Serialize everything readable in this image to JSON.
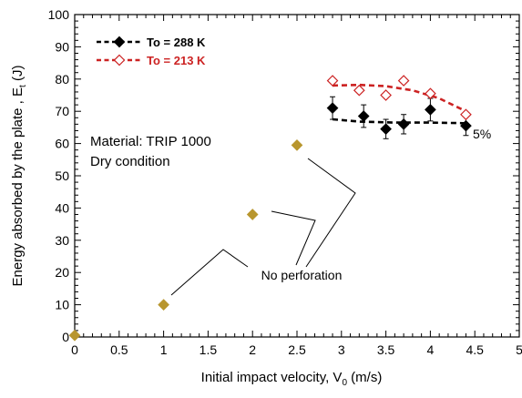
{
  "chart_data": {
    "type": "scatter",
    "xlabel": "Initial impact velocity, V",
    "xlabel_sub": "0",
    "xlabel_unit": " (m/s)",
    "ylabel": "Energy absorbed by the plate , E",
    "ylabel_sub": "t",
    "ylabel_unit": " (J)",
    "xlim": [
      0,
      5
    ],
    "ylim": [
      0,
      100
    ],
    "x_ticks": [
      0,
      0.5,
      1,
      1.5,
      2,
      2.5,
      3,
      3.5,
      4,
      4.5,
      5
    ],
    "x_tick_labels": [
      "0",
      "0.5",
      "1",
      "1.5",
      "2",
      "2.5",
      "3",
      "3.5",
      "4",
      "4.5",
      "5"
    ],
    "y_ticks": [
      0,
      10,
      20,
      30,
      40,
      50,
      60,
      70,
      80,
      90,
      100
    ],
    "y_tick_labels": [
      "0",
      "10",
      "20",
      "30",
      "40",
      "50",
      "60",
      "70",
      "80",
      "90",
      "100"
    ],
    "grid": false,
    "legend_position": "top-left",
    "series": [
      {
        "name": "To = 288 K",
        "color": "#000000",
        "marker": "filled-diamond",
        "points": [
          {
            "x": 2.9,
            "y": 71,
            "err": 3.5
          },
          {
            "x": 3.25,
            "y": 68.5,
            "err": 3.5
          },
          {
            "x": 3.5,
            "y": 64.5,
            "err": 3
          },
          {
            "x": 3.7,
            "y": 66,
            "err": 3
          },
          {
            "x": 4.0,
            "y": 70.5,
            "err": 3.5
          },
          {
            "x": 4.4,
            "y": 65.5,
            "err": 3
          }
        ],
        "trend": [
          [
            2.9,
            67.5
          ],
          [
            3.2,
            66.8
          ],
          [
            3.6,
            66.5
          ],
          [
            4.0,
            66.5
          ],
          [
            4.4,
            66.3
          ]
        ]
      },
      {
        "name": "To = 213 K",
        "color": "#cc2222",
        "marker": "open-diamond",
        "points": [
          {
            "x": 2.9,
            "y": 79.5
          },
          {
            "x": 3.2,
            "y": 76.5
          },
          {
            "x": 3.5,
            "y": 75
          },
          {
            "x": 3.7,
            "y": 79.5
          },
          {
            "x": 4.0,
            "y": 75.5
          },
          {
            "x": 4.4,
            "y": 69
          }
        ],
        "trend": [
          [
            2.9,
            78
          ],
          [
            3.2,
            78.2
          ],
          [
            3.5,
            77.8
          ],
          [
            3.8,
            76.5
          ],
          [
            4.1,
            74
          ],
          [
            4.4,
            70
          ]
        ]
      },
      {
        "name": "",
        "color": "#b8962e",
        "marker": "filled-diamond",
        "points": [
          {
            "x": 0,
            "y": 0.5
          },
          {
            "x": 1.0,
            "y": 10
          },
          {
            "x": 2.0,
            "y": 38
          },
          {
            "x": 2.5,
            "y": 59.5
          }
        ]
      }
    ],
    "annotations": {
      "material": "Material: TRIP 1000",
      "condition": "Dry condition",
      "no_perforation": "No perforation",
      "percent": "5%"
    }
  }
}
